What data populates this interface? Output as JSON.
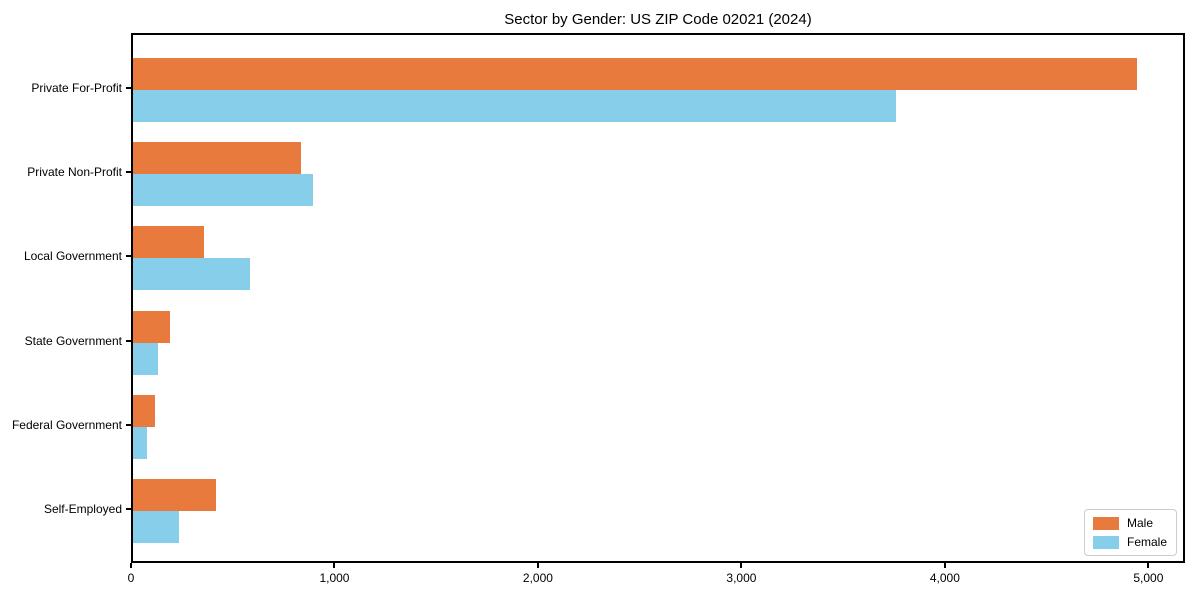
{
  "chart_data": {
    "type": "bar",
    "orientation": "horizontal",
    "title": "Sector by Gender: US ZIP Code 02021 (2024)",
    "categories": [
      "Private For-Profit",
      "Private Non-Profit",
      "Local Government",
      "State Government",
      "Federal Government",
      "Self-Employed"
    ],
    "series": [
      {
        "name": "Male",
        "color": "#e87a3e",
        "values": [
          4935,
          825,
          350,
          180,
          110,
          410
        ]
      },
      {
        "name": "Female",
        "color": "#87ceeb",
        "values": [
          3750,
          885,
          575,
          125,
          70,
          225
        ]
      }
    ],
    "xlim": [
      0,
      5180
    ],
    "x_ticks": [
      0,
      1000,
      2000,
      3000,
      4000,
      5000
    ],
    "x_tick_labels": [
      "0",
      "1,000",
      "2,000",
      "3,000",
      "4,000",
      "5,000"
    ],
    "xlabel": "",
    "ylabel": "",
    "grid": false,
    "legend": {
      "position": "lower right",
      "entries": [
        "Male",
        "Female"
      ]
    }
  }
}
